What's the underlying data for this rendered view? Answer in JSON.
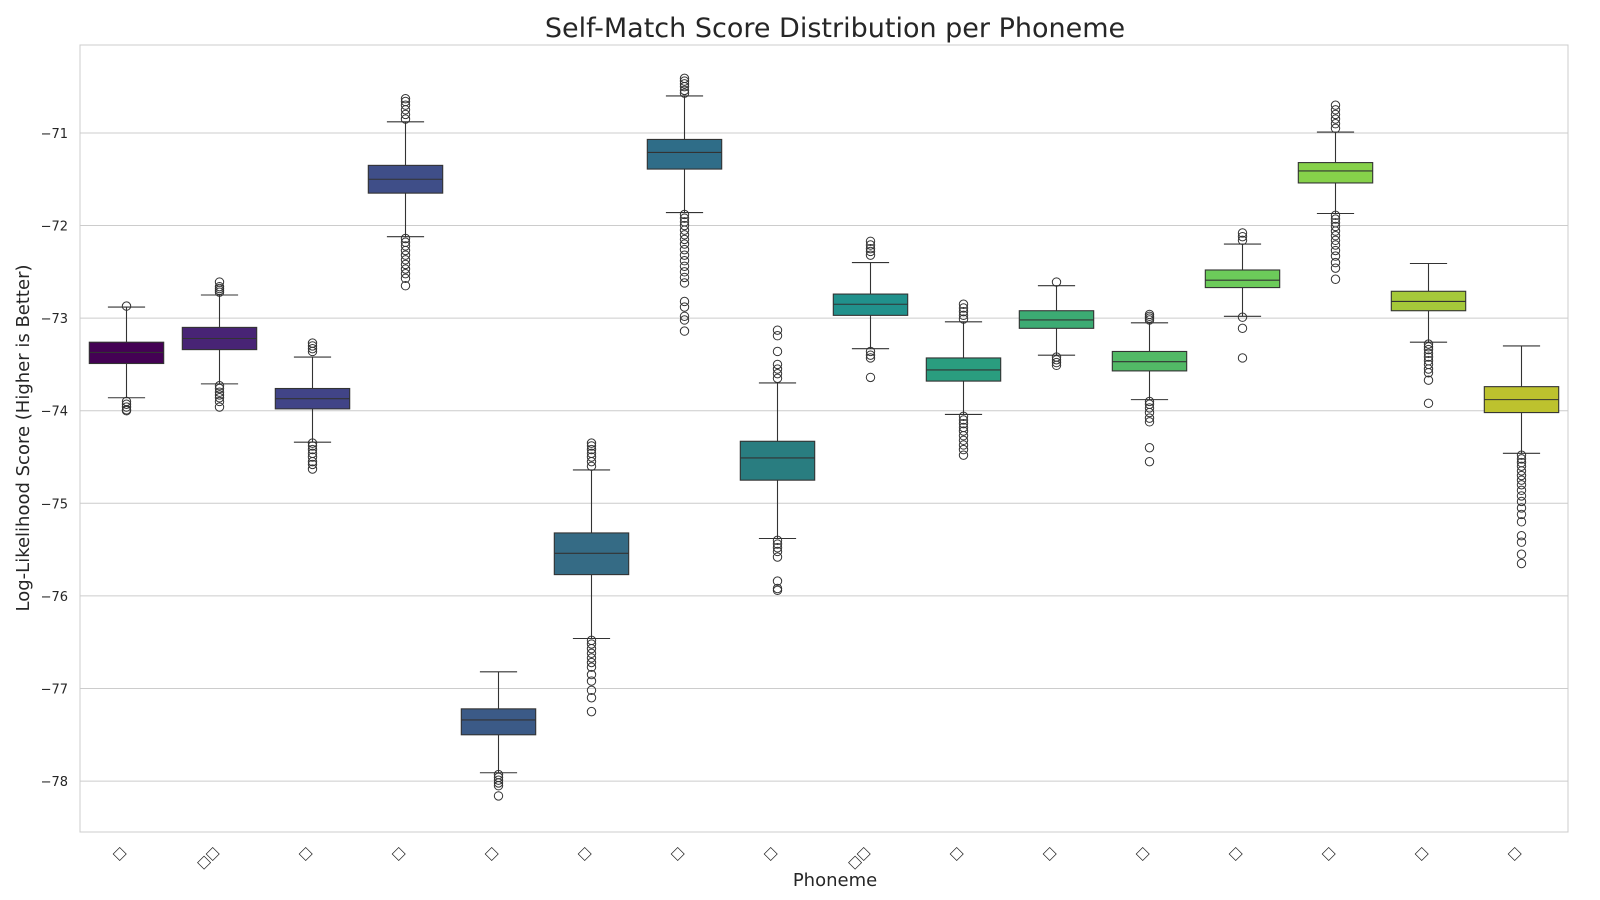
{
  "chart_data": {
    "type": "box",
    "title": "Self-Match Score Distribution per Phoneme",
    "xlabel": "Phoneme",
    "ylabel": "Log-Likelihood Score (Higher is Better)",
    "ylim": [
      -78.55,
      -70.05
    ],
    "yticks": [
      -71,
      -72,
      -73,
      -74,
      -75,
      -76,
      -77,
      -78
    ],
    "grid": "horizontal",
    "legend": "none",
    "categories": [
      "□",
      "□□",
      "□",
      "□",
      "□",
      "□",
      "□",
      "□",
      "□□",
      "□",
      "□",
      "□",
      "□",
      "□",
      "□",
      "□"
    ],
    "boxes": [
      {
        "q1": -73.49,
        "median": -73.37,
        "q3": -73.26,
        "whislo": -73.86,
        "whishi": -72.88,
        "color": "#440154",
        "fliers": [
          -72.87,
          -73.9,
          -73.93,
          -73.96,
          -73.99,
          -74.0
        ]
      },
      {
        "q1": -73.34,
        "median": -73.22,
        "q3": -73.1,
        "whislo": -73.71,
        "whishi": -72.75,
        "color": "#482475",
        "fliers": [
          -72.61,
          -72.66,
          -72.68,
          -72.7,
          -72.72,
          -73.73,
          -73.76,
          -73.8,
          -73.83,
          -73.86,
          -73.9,
          -73.96
        ]
      },
      {
        "q1": -73.98,
        "median": -73.87,
        "q3": -73.76,
        "whislo": -74.34,
        "whishi": -73.42,
        "color": "#414487",
        "fliers": [
          -73.27,
          -73.3,
          -73.33,
          -73.36,
          -74.35,
          -74.38,
          -74.42,
          -74.46,
          -74.5,
          -74.55,
          -74.58,
          -74.63
        ]
      },
      {
        "q1": -71.65,
        "median": -71.5,
        "q3": -71.35,
        "whislo": -72.12,
        "whishi": -70.88,
        "color": "#3f4e88",
        "fliers": [
          -70.63,
          -70.66,
          -70.7,
          -70.75,
          -70.8,
          -70.85,
          -72.14,
          -72.18,
          -72.22,
          -72.27,
          -72.32,
          -72.37,
          -72.42,
          -72.47,
          -72.52,
          -72.57,
          -72.65
        ]
      },
      {
        "q1": -77.5,
        "median": -77.34,
        "q3": -77.22,
        "whislo": -77.91,
        "whishi": -76.82,
        "color": "#3b5a87",
        "fliers": [
          -77.93,
          -77.96,
          -77.99,
          -78.02,
          -78.05,
          -78.16
        ]
      },
      {
        "q1": -75.77,
        "median": -75.54,
        "q3": -75.32,
        "whislo": -76.46,
        "whishi": -74.64,
        "color": "#356b85",
        "fliers": [
          -74.35,
          -74.38,
          -74.42,
          -74.46,
          -74.5,
          -74.55,
          -74.6,
          -76.48,
          -76.52,
          -76.57,
          -76.62,
          -76.67,
          -76.72,
          -76.77,
          -76.85,
          -76.92,
          -77.02,
          -77.1,
          -77.25
        ]
      },
      {
        "q1": -71.39,
        "median": -71.21,
        "q3": -71.07,
        "whislo": -71.86,
        "whishi": -70.6,
        "color": "#2f6d88",
        "fliers": [
          -70.41,
          -70.44,
          -70.47,
          -70.5,
          -70.54,
          -70.57,
          -71.88,
          -71.92,
          -71.96,
          -72.0,
          -72.05,
          -72.1,
          -72.15,
          -72.2,
          -72.26,
          -72.32,
          -72.38,
          -72.44,
          -72.5,
          -72.56,
          -72.62,
          -72.82,
          -72.88,
          -72.98,
          -73.02,
          -73.14
        ]
      },
      {
        "q1": -74.75,
        "median": -74.51,
        "q3": -74.33,
        "whislo": -75.38,
        "whishi": -73.7,
        "color": "#297d80",
        "fliers": [
          -73.13,
          -73.19,
          -73.36,
          -73.5,
          -73.55,
          -73.6,
          -73.65,
          -75.4,
          -75.44,
          -75.48,
          -75.52,
          -75.58,
          -75.84,
          -75.92,
          -75.94
        ]
      },
      {
        "q1": -72.97,
        "median": -72.85,
        "q3": -72.74,
        "whislo": -73.33,
        "whishi": -72.4,
        "color": "#21918c",
        "fliers": [
          -72.17,
          -72.21,
          -72.25,
          -72.28,
          -72.32,
          -73.36,
          -73.4,
          -73.43,
          -73.64
        ]
      },
      {
        "q1": -73.68,
        "median": -73.56,
        "q3": -73.43,
        "whislo": -74.04,
        "whishi": -73.04,
        "color": "#2a9d7f",
        "fliers": [
          -72.85,
          -72.89,
          -72.93,
          -72.97,
          -73.01,
          -74.06,
          -74.1,
          -74.14,
          -74.18,
          -74.22,
          -74.27,
          -74.32,
          -74.37,
          -74.42,
          -74.48
        ]
      },
      {
        "q1": -73.11,
        "median": -73.02,
        "q3": -72.92,
        "whislo": -73.4,
        "whishi": -72.65,
        "color": "#3cab73",
        "fliers": [
          -72.61,
          -73.42,
          -73.45,
          -73.48,
          -73.51
        ]
      },
      {
        "q1": -73.57,
        "median": -73.47,
        "q3": -73.36,
        "whislo": -73.88,
        "whishi": -73.05,
        "color": "#52b966",
        "fliers": [
          -72.96,
          -72.98,
          -73.0,
          -73.02,
          -73.9,
          -73.93,
          -73.97,
          -74.02,
          -74.08,
          -74.12,
          -74.4,
          -74.55
        ]
      },
      {
        "q1": -72.67,
        "median": -72.59,
        "q3": -72.48,
        "whislo": -72.98,
        "whishi": -72.2,
        "color": "#6ccb5a",
        "fliers": [
          -72.08,
          -72.12,
          -72.16,
          -72.99,
          -73.11,
          -73.43
        ]
      },
      {
        "q1": -71.54,
        "median": -71.41,
        "q3": -71.32,
        "whislo": -71.87,
        "whishi": -70.99,
        "color": "#86d14a",
        "fliers": [
          -70.7,
          -70.75,
          -70.8,
          -70.85,
          -70.9,
          -70.95,
          -71.89,
          -71.93,
          -71.97,
          -72.01,
          -72.06,
          -72.11,
          -72.16,
          -72.21,
          -72.27,
          -72.33,
          -72.4,
          -72.46,
          -72.58
        ]
      },
      {
        "q1": -72.92,
        "median": -72.82,
        "q3": -72.71,
        "whislo": -73.26,
        "whishi": -72.41,
        "color": "#a5c93a",
        "fliers": [
          -73.28,
          -73.31,
          -73.34,
          -73.38,
          -73.42,
          -73.46,
          -73.5,
          -73.55,
          -73.59,
          -73.67,
          -73.92
        ]
      },
      {
        "q1": -74.02,
        "median": -73.88,
        "q3": -73.74,
        "whislo": -74.46,
        "whishi": -73.3,
        "color": "#bdc22e",
        "fliers": [
          -74.48,
          -74.52,
          -74.56,
          -74.6,
          -74.65,
          -74.7,
          -74.75,
          -74.8,
          -74.86,
          -74.92,
          -74.98,
          -75.05,
          -75.12,
          -75.2,
          -75.35,
          -75.42,
          -75.55,
          -75.65
        ]
      }
    ]
  }
}
